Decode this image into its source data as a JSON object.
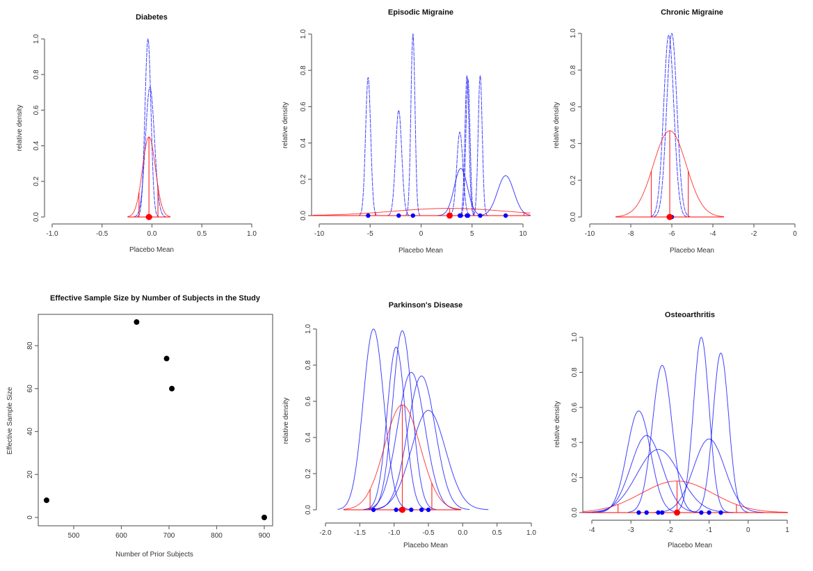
{
  "chart_data": [
    {
      "type": "line",
      "title": "Diabetes",
      "xlabel": "Placebo Mean",
      "ylabel": "relative density",
      "xlim": [
        -1,
        1
      ],
      "ylim": [
        0,
        1
      ],
      "xticks": [
        "-1.0",
        "-0.5",
        "0.0",
        "0.5",
        "1.0"
      ],
      "xtick_values": [
        -1,
        -0.5,
        0,
        0.5,
        1
      ],
      "yticks": [
        "0.0",
        "0.2",
        "0.4",
        "0.6",
        "0.8",
        "1.0"
      ],
      "study_curves": [
        {
          "mean": -0.04,
          "sd": 0.03,
          "peak": 1.0
        },
        {
          "mean": -0.02,
          "sd": 0.045,
          "peak": 0.73
        }
      ],
      "prior_curve": {
        "mean": -0.03,
        "sd": 0.065,
        "peak": 0.45,
        "interval": [
          -0.13,
          0.06
        ]
      },
      "study_points": [
        -0.04,
        -0.02
      ],
      "prior_point": -0.03,
      "colors": {
        "study": "#0000ff",
        "prior": "#ff0000"
      }
    },
    {
      "type": "line",
      "title": "Episodic Migraine",
      "xlabel": "Placebo Mean",
      "ylabel": "relative density",
      "xlim": [
        -10,
        10
      ],
      "ylim": [
        0,
        1
      ],
      "xticks": [
        "-10",
        "-5",
        "0",
        "5",
        "10"
      ],
      "xtick_values": [
        -10,
        -5,
        0,
        5,
        10
      ],
      "yticks": [
        "0.0",
        "0.2",
        "0.4",
        "0.6",
        "0.8",
        "1.0"
      ],
      "study_curves": [
        {
          "mean": -5.2,
          "sd": 0.25,
          "peak": 0.76
        },
        {
          "mean": -2.2,
          "sd": 0.3,
          "peak": 0.58
        },
        {
          "mean": -0.8,
          "sd": 0.2,
          "peak": 1.0
        },
        {
          "mean": 3.8,
          "sd": 0.3,
          "peak": 0.46
        },
        {
          "mean": 3.9,
          "sd": 0.65,
          "peak": 0.26
        },
        {
          "mean": 4.5,
          "sd": 0.2,
          "peak": 0.77
        },
        {
          "mean": 4.6,
          "sd": 0.2,
          "peak": 0.75
        },
        {
          "mean": 5.8,
          "sd": 0.2,
          "peak": 0.77
        },
        {
          "mean": 8.3,
          "sd": 0.8,
          "peak": 0.22
        }
      ],
      "prior_curve": {
        "mean": 2.8,
        "sd": 5.5,
        "peak": 0.04,
        "interval": [
          -4.5,
          10.1
        ]
      },
      "study_points": [
        -5.2,
        -2.2,
        -0.8,
        3.8,
        3.9,
        4.5,
        4.6,
        5.8,
        8.3
      ],
      "prior_point": 2.8,
      "colors": {
        "study": "#0000ff",
        "prior": "#ff0000"
      }
    },
    {
      "type": "line",
      "title": "Chronic Migraine",
      "xlabel": "Placebo Mean",
      "ylabel": "relative density",
      "xlim": [
        -10,
        0
      ],
      "ylim": [
        0,
        1
      ],
      "xticks": [
        "-10",
        "-8",
        "-6",
        "-4",
        "-2",
        "0"
      ],
      "xtick_values": [
        -10,
        -8,
        -6,
        -4,
        -2,
        0
      ],
      "yticks": [
        "0.0",
        "0.2",
        "0.4",
        "0.6",
        "0.8",
        "1.0"
      ],
      "study_curves": [
        {
          "mean": -6.15,
          "sd": 0.25,
          "peak": 0.99
        },
        {
          "mean": -6.0,
          "sd": 0.25,
          "peak": 1.0
        }
      ],
      "prior_curve": {
        "mean": -6.1,
        "sd": 0.8,
        "peak": 0.47,
        "interval": [
          -7.0,
          -5.2
        ]
      },
      "study_points": [
        -6.15,
        -6.0
      ],
      "prior_point": -6.1,
      "colors": {
        "study": "#0000ff",
        "prior": "#ff0000"
      }
    },
    {
      "type": "scatter",
      "title": "Effective Sample Size by Number of Subjects in the Study",
      "xlabel": "Number of Prior Subjects",
      "ylabel": "Effective Sample Size",
      "xlim": [
        425,
        905
      ],
      "ylim": [
        -3,
        94
      ],
      "xticks": [
        "500",
        "600",
        "700",
        "800",
        "900"
      ],
      "xtick_values": [
        500,
        600,
        700,
        800,
        900
      ],
      "yticks": [
        "0",
        "20",
        "40",
        "60",
        "80"
      ],
      "ytick_values": [
        0,
        20,
        40,
        60,
        80
      ],
      "points": [
        {
          "x": 443,
          "y": 8
        },
        {
          "x": 632,
          "y": 91
        },
        {
          "x": 695,
          "y": 74
        },
        {
          "x": 706,
          "y": 60
        },
        {
          "x": 900,
          "y": 0
        }
      ]
    },
    {
      "type": "line",
      "title": "Parkinson's Disease",
      "xlabel": "Placebo Mean",
      "ylabel": "relative density",
      "xlim": [
        -2,
        1
      ],
      "ylim": [
        0,
        1
      ],
      "xticks": [
        "-2.0",
        "-1.5",
        "-1.0",
        "-0.5",
        "0.0",
        "0.5",
        "1.0"
      ],
      "xtick_values": [
        -2,
        -1.5,
        -1,
        -0.5,
        0,
        0.5,
        1
      ],
      "yticks": [
        "0.0",
        "0.2",
        "0.4",
        "0.6",
        "0.8",
        "1.0"
      ],
      "study_curves": [
        {
          "mean": -1.3,
          "sd": 0.15,
          "peak": 1.0
        },
        {
          "mean": -0.97,
          "sd": 0.13,
          "peak": 0.9
        },
        {
          "mean": -0.88,
          "sd": 0.14,
          "peak": 0.99
        },
        {
          "mean": -0.75,
          "sd": 0.2,
          "peak": 0.76
        },
        {
          "mean": -0.6,
          "sd": 0.2,
          "peak": 0.74
        },
        {
          "mean": -0.5,
          "sd": 0.25,
          "peak": 0.55
        }
      ],
      "prior_curve": {
        "mean": -0.88,
        "sd": 0.26,
        "peak": 0.58,
        "interval": [
          -1.35,
          -0.45
        ]
      },
      "study_points": [
        -1.3,
        -0.97,
        -0.9,
        -0.75,
        -0.6,
        -0.5
      ],
      "prior_point": -0.88,
      "colors": {
        "study": "#0000ff",
        "prior": "#ff0000"
      }
    },
    {
      "type": "line",
      "title": "Osteoarthritis",
      "xlabel": "Placebo Mean",
      "ylabel": "relative density",
      "xlim": [
        -4,
        1
      ],
      "ylim": [
        0,
        1
      ],
      "xticks": [
        "-4",
        "-3",
        "-2",
        "-1",
        "0",
        "1"
      ],
      "xtick_values": [
        -4,
        -3,
        -2,
        -1,
        0,
        1
      ],
      "yticks": [
        "0.0",
        "0.2",
        "0.4",
        "0.6",
        "0.8",
        "1.0"
      ],
      "study_curves": [
        {
          "mean": -2.8,
          "sd": 0.3,
          "peak": 0.58
        },
        {
          "mean": -2.6,
          "sd": 0.4,
          "peak": 0.44
        },
        {
          "mean": -2.2,
          "sd": 0.25,
          "peak": 0.84
        },
        {
          "mean": -2.3,
          "sd": 0.55,
          "peak": 0.36
        },
        {
          "mean": -1.2,
          "sd": 0.2,
          "peak": 1.0
        },
        {
          "mean": -1.0,
          "sd": 0.4,
          "peak": 0.42
        },
        {
          "mean": -0.7,
          "sd": 0.2,
          "peak": 0.91
        }
      ],
      "prior_curve": {
        "mean": -1.82,
        "sd": 0.92,
        "peak": 0.18,
        "interval": [
          -3.33,
          -0.3
        ]
      },
      "study_points": [
        -2.8,
        -2.6,
        -2.3,
        -2.2,
        -1.2,
        -1.0,
        -0.7
      ],
      "prior_point": -1.82,
      "colors": {
        "study": "#0000ff",
        "prior": "#ff0000"
      }
    }
  ]
}
